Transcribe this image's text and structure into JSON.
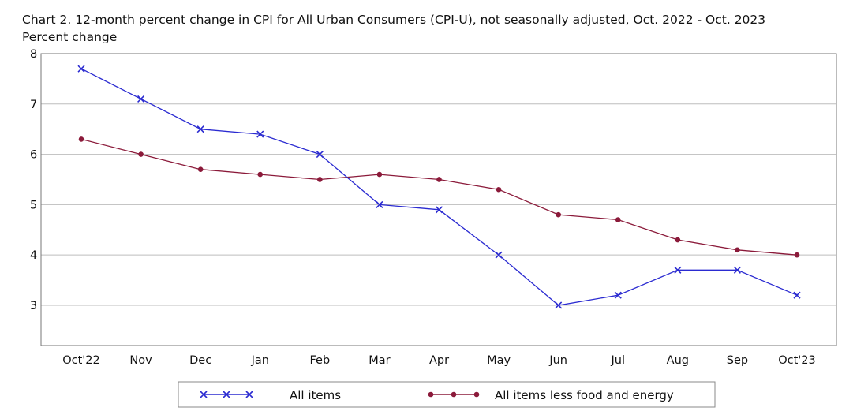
{
  "chart_data": {
    "type": "line",
    "title": "Chart 2. 12-month percent change in CPI for All Urban Consumers (CPI-U), not seasonally adjusted, Oct. 2022 - Oct. 2023",
    "ylabel": "Percent change",
    "xlabel": "",
    "categories": [
      "Oct'22",
      "Nov",
      "Dec",
      "Jan",
      "Feb",
      "Mar",
      "Apr",
      "May",
      "Jun",
      "Jul",
      "Aug",
      "Sep",
      "Oct'23"
    ],
    "ylim": [
      2.2,
      8
    ],
    "yticks": [
      3,
      4,
      5,
      6,
      7,
      8
    ],
    "grid": true,
    "legend_position": "bottom",
    "series": [
      {
        "name": "All items",
        "color": "#2b2bd1",
        "marker": "x",
        "values": [
          7.7,
          7.1,
          6.5,
          6.4,
          6.0,
          5.0,
          4.9,
          4.0,
          3.0,
          3.2,
          3.7,
          3.7,
          3.2
        ]
      },
      {
        "name": "All items less food and energy",
        "color": "#8b1a3a",
        "marker": "circle",
        "values": [
          6.3,
          6.0,
          5.7,
          5.6,
          5.5,
          5.6,
          5.5,
          5.3,
          4.8,
          4.7,
          4.3,
          4.1,
          4.0
        ]
      }
    ]
  }
}
